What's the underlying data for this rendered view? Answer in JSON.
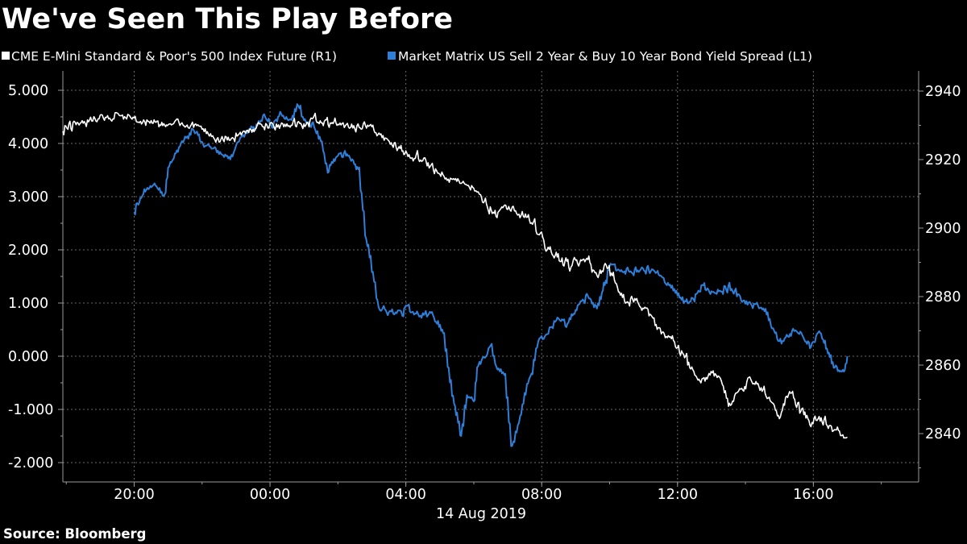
{
  "title": "We've Seen This Play Before",
  "source": "Source: Bloomberg",
  "colors": {
    "background": "#000000",
    "spx": "#ffffff",
    "spread": "#2f7fd9",
    "grid": "#6a6a6a"
  },
  "chart_data": {
    "type": "line",
    "title": "We've Seen This Play Before",
    "grid": true,
    "legend_placement": "top",
    "date_label": "14 Aug 2019",
    "x_ticks": [
      "20:00",
      "00:00",
      "04:00",
      "08:00",
      "12:00",
      "16:00"
    ],
    "x_tick_hours": [
      20,
      24,
      28,
      32,
      36,
      40
    ],
    "x_range_hours": [
      17.9,
      43.1
    ],
    "left_axis": {
      "range": [
        -2.4,
        5.2
      ],
      "ticks": [
        "5.000",
        "4.000",
        "3.000",
        "2.000",
        "1.000",
        "0.000",
        "-1.000",
        "-2.000"
      ],
      "tick_values": [
        5,
        4,
        3,
        2,
        1,
        0,
        -1,
        -2
      ]
    },
    "right_axis": {
      "range": [
        2826,
        2944
      ],
      "ticks": [
        "2940",
        "2920",
        "2900",
        "2880",
        "2860",
        "2840"
      ],
      "tick_values": [
        2940,
        2920,
        2900,
        2880,
        2860,
        2840
      ]
    },
    "series": [
      {
        "name": "CME E-Mini Standard & Poor's 500 Index Future  (R1)",
        "axis": "right",
        "color": "#ffffff",
        "hours": [
          17.9,
          18.5,
          19.0,
          19.5,
          20.0,
          20.5,
          20.9,
          21.0,
          21.2,
          21.5,
          22.0,
          22.5,
          22.8,
          23.0,
          23.5,
          24.0,
          24.5,
          25.0,
          25.3,
          25.6,
          26.0,
          26.5,
          27.0,
          27.3,
          27.6,
          28.0,
          28.5,
          29.0,
          29.5,
          30.0,
          30.2,
          30.6,
          31.0,
          31.2,
          31.4,
          31.7,
          31.9,
          32.1,
          32.4,
          32.8,
          33.0,
          33.3,
          33.6,
          33.9,
          34.2,
          34.5,
          34.8,
          35.1,
          35.4,
          35.7,
          36.0,
          36.3,
          36.6,
          36.9,
          37.2,
          37.5,
          37.8,
          38.1,
          38.4,
          38.7,
          39.0,
          39.3,
          39.6,
          39.9,
          40.2,
          40.5,
          40.8,
          41.0
        ],
        "values": [
          2929,
          2931,
          2932,
          2933,
          2932,
          2931,
          2930,
          2931,
          2931,
          2930,
          2929,
          2926,
          2926,
          2927,
          2929,
          2930,
          2931,
          2930,
          2932,
          2931,
          2930,
          2929,
          2930,
          2926,
          2925,
          2922,
          2920,
          2916,
          2914,
          2912,
          2909,
          2904,
          2906,
          2905,
          2904,
          2902,
          2899,
          2895,
          2891,
          2889,
          2890,
          2891,
          2886,
          2889,
          2883,
          2878,
          2879,
          2876,
          2871,
          2868,
          2865,
          2861,
          2856,
          2857,
          2857,
          2848,
          2852,
          2856,
          2854,
          2850,
          2845,
          2853,
          2847,
          2843,
          2844,
          2842,
          2840,
          2839
        ]
      },
      {
        "name": "Market Matrix US Sell 2 Year & Buy 10 Year Bond Yield Spread  (L1)",
        "axis": "left",
        "color": "#2f7fd9",
        "hours": [
          20.0,
          20.3,
          20.6,
          20.9,
          21.0,
          21.2,
          21.5,
          21.7,
          22.0,
          22.5,
          22.8,
          23.0,
          23.3,
          23.6,
          23.8,
          24.0,
          24.3,
          24.6,
          24.8,
          25.0,
          25.3,
          25.5,
          25.7,
          26.0,
          26.3,
          26.6,
          26.8,
          27.0,
          27.2,
          27.5,
          27.7,
          27.9,
          28.0,
          28.3,
          28.5,
          28.8,
          29.1,
          29.3,
          29.6,
          29.8,
          30.0,
          30.1,
          30.3,
          30.5,
          30.7,
          30.9,
          31.1,
          31.3,
          31.5,
          31.7,
          31.9,
          32.1,
          32.3,
          32.5,
          32.7,
          33.0,
          33.3,
          33.6,
          34.0,
          34.5,
          34.8,
          35.1,
          35.5,
          36.0,
          36.3,
          36.7,
          37.0,
          37.5,
          38.0,
          38.5,
          39.0,
          39.5,
          39.9,
          40.2,
          40.6,
          40.9,
          41.0
        ],
        "values": [
          2.75,
          3.1,
          3.2,
          3.0,
          3.6,
          3.8,
          4.1,
          4.3,
          4.0,
          3.85,
          3.7,
          3.95,
          4.2,
          4.35,
          4.5,
          4.3,
          4.55,
          4.45,
          4.75,
          4.45,
          4.3,
          4.0,
          3.5,
          3.8,
          3.75,
          3.5,
          2.3,
          1.6,
          0.9,
          0.8,
          0.85,
          0.8,
          0.95,
          0.75,
          0.8,
          0.75,
          0.4,
          -0.5,
          -1.5,
          -0.7,
          -0.8,
          -0.2,
          0.0,
          0.15,
          -0.3,
          -0.4,
          -1.7,
          -1.3,
          -0.7,
          -0.3,
          0.3,
          0.4,
          0.6,
          0.75,
          0.6,
          0.85,
          1.15,
          0.9,
          1.7,
          1.6,
          1.6,
          1.65,
          1.55,
          1.1,
          0.95,
          1.3,
          1.2,
          1.3,
          1.0,
          0.9,
          0.25,
          0.5,
          0.2,
          0.45,
          -0.2,
          -0.3,
          0.0
        ]
      }
    ]
  }
}
